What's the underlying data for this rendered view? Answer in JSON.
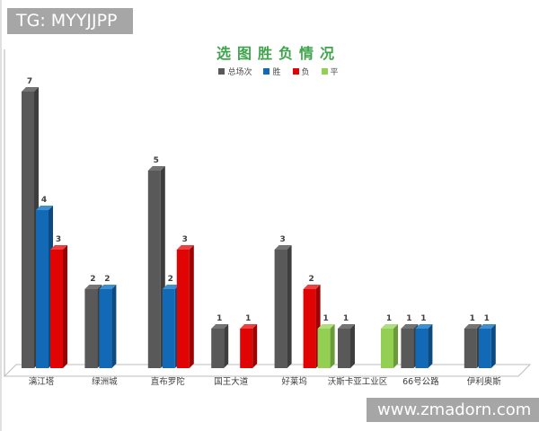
{
  "header": {
    "tag_label": "TG: MYYJJPP"
  },
  "footer": {
    "site_url": "www.zmadorn.com"
  },
  "banner_color": "#a6a6a6",
  "chart_data": {
    "type": "bar",
    "style": "3d-column",
    "title": "选图胜负情况",
    "title_color": "#3fa44c",
    "grid": false,
    "legend_position": "top",
    "value_labels_shown": true,
    "ylim": [
      0,
      7
    ],
    "categories": [
      "漓江塔",
      "绿洲城",
      "直布罗陀",
      "国王大道",
      "好莱坞",
      "沃斯卡亚工业区",
      "66号公路",
      "伊利奥斯"
    ],
    "series": [
      {
        "name": "总场次",
        "values": [
          7,
          2,
          5,
          1,
          3,
          1,
          1,
          1
        ],
        "color": "#595959",
        "side_color": "#3d3d3d",
        "top_color": "#747474"
      },
      {
        "name": "胜",
        "values": [
          4,
          2,
          2,
          0,
          0,
          0,
          1,
          1
        ],
        "color": "#1269b5",
        "side_color": "#0d4a80",
        "top_color": "#3e8fd0"
      },
      {
        "name": "负",
        "values": [
          3,
          0,
          3,
          1,
          2,
          0,
          0,
          0
        ],
        "color": "#e00404",
        "side_color": "#9c0202",
        "top_color": "#ef4040"
      },
      {
        "name": "平",
        "values": [
          0,
          0,
          0,
          0,
          1,
          1,
          0,
          0
        ],
        "color": "#93cf53",
        "side_color": "#699c38",
        "top_color": "#b0de7e"
      }
    ],
    "axis_color": "#b3b3b3",
    "label_color": "#3f3f3f"
  }
}
